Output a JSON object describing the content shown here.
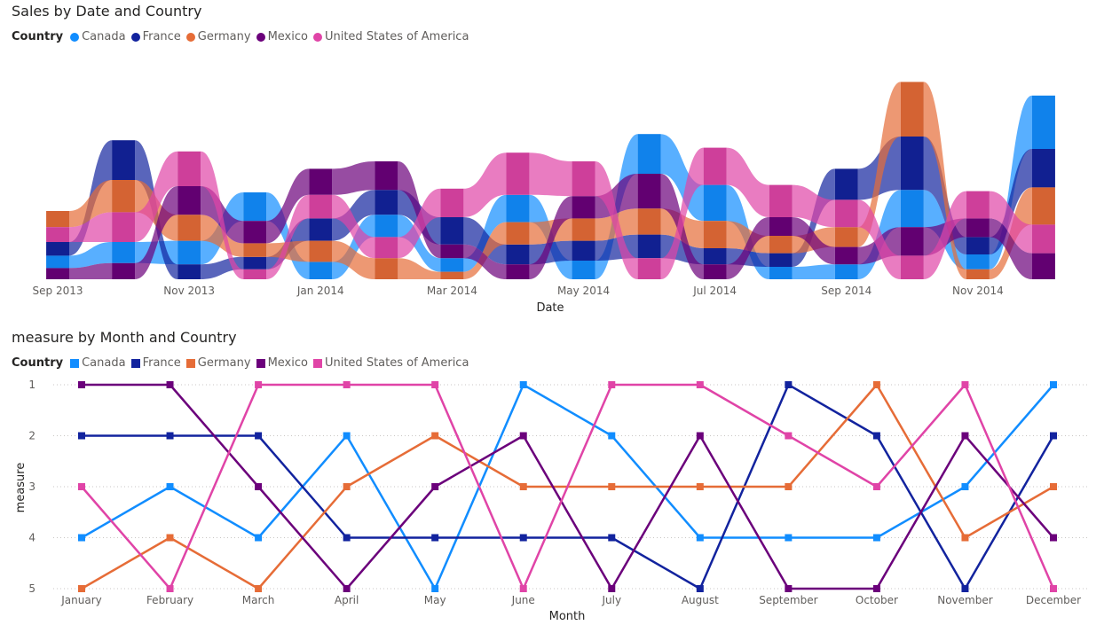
{
  "colors": {
    "Canada": "#118DFF",
    "France": "#12239E",
    "Germany": "#E66C37",
    "Mexico": "#6B007B",
    "United States of America": "#E044A7"
  },
  "chart_data": [
    {
      "type": "area",
      "subtype": "ribbon",
      "title": "Sales by Date and Country",
      "legend_title": "Country",
      "legend_position": "top-left",
      "xlabel": "Date",
      "ylabel": "",
      "grid": false,
      "x": [
        "Sep 2013",
        "Oct 2013",
        "Nov 2013",
        "Dec 2013",
        "Jan 2014",
        "Feb 2014",
        "Mar 2014",
        "Apr 2014",
        "May 2014",
        "Jun 2014",
        "Jul 2014",
        "Aug 2014",
        "Sep 2014",
        "Oct 2014",
        "Nov 2014",
        "Dec 2014"
      ],
      "x_tick_labels": [
        "Sep 2013",
        "Nov 2013",
        "Jan 2014",
        "Mar 2014",
        "May 2014",
        "Jul 2014",
        "Sep 2014",
        "Nov 2014"
      ],
      "series": [
        {
          "name": "Canada",
          "values": [
            1.0,
            1.7,
            1.9,
            2.3,
            1.4,
            1.8,
            1.1,
            2.2,
            1.5,
            3.2,
            2.9,
            1.0,
            1.2,
            3.0,
            1.2,
            4.3
          ]
        },
        {
          "name": "France",
          "values": [
            1.1,
            3.2,
            1.2,
            1.0,
            1.8,
            2.0,
            2.2,
            1.6,
            1.6,
            1.9,
            1.3,
            1.1,
            2.5,
            4.3,
            1.4,
            3.1
          ]
        },
        {
          "name": "Germany",
          "values": [
            1.3,
            2.6,
            2.1,
            1.1,
            1.7,
            1.7,
            0.6,
            1.8,
            1.8,
            2.1,
            2.2,
            1.4,
            1.6,
            4.4,
            0.8,
            3.0
          ]
        },
        {
          "name": "Mexico",
          "values": [
            0.9,
            1.3,
            2.3,
            1.8,
            2.1,
            2.3,
            1.1,
            1.2,
            1.8,
            2.8,
            1.2,
            1.5,
            1.4,
            2.3,
            1.5,
            2.1
          ]
        },
        {
          "name": "United States of America",
          "values": [
            1.2,
            2.4,
            2.8,
            0.8,
            1.9,
            1.7,
            2.3,
            3.4,
            2.8,
            1.7,
            3.0,
            2.6,
            2.2,
            1.9,
            2.2,
            2.3
          ]
        }
      ]
    },
    {
      "type": "line",
      "title": "measure by Month and Country",
      "legend_title": "Country",
      "legend_position": "top-left",
      "xlabel": "Month",
      "ylabel": "measure",
      "ylim": [
        5,
        1
      ],
      "y_ticks": [
        "1",
        "2",
        "3",
        "4",
        "5"
      ],
      "grid": true,
      "categories": [
        "January",
        "February",
        "March",
        "April",
        "May",
        "June",
        "July",
        "August",
        "September",
        "October",
        "November",
        "December"
      ],
      "series": [
        {
          "name": "Canada",
          "values": [
            4,
            3,
            4,
            2,
            5,
            1,
            2,
            4,
            4,
            4,
            3,
            1
          ]
        },
        {
          "name": "France",
          "values": [
            2,
            2,
            2,
            4,
            4,
            4,
            4,
            5,
            1,
            2,
            5,
            2
          ]
        },
        {
          "name": "Germany",
          "values": [
            5,
            4,
            5,
            3,
            2,
            3,
            3,
            3,
            3,
            1,
            4,
            3
          ]
        },
        {
          "name": "Mexico",
          "values": [
            1,
            1,
            3,
            5,
            3,
            2,
            5,
            2,
            5,
            5,
            2,
            4
          ]
        },
        {
          "name": "United States of America",
          "values": [
            3,
            5,
            1,
            1,
            1,
            5,
            1,
            1,
            2,
            3,
            1,
            5
          ]
        }
      ]
    }
  ]
}
